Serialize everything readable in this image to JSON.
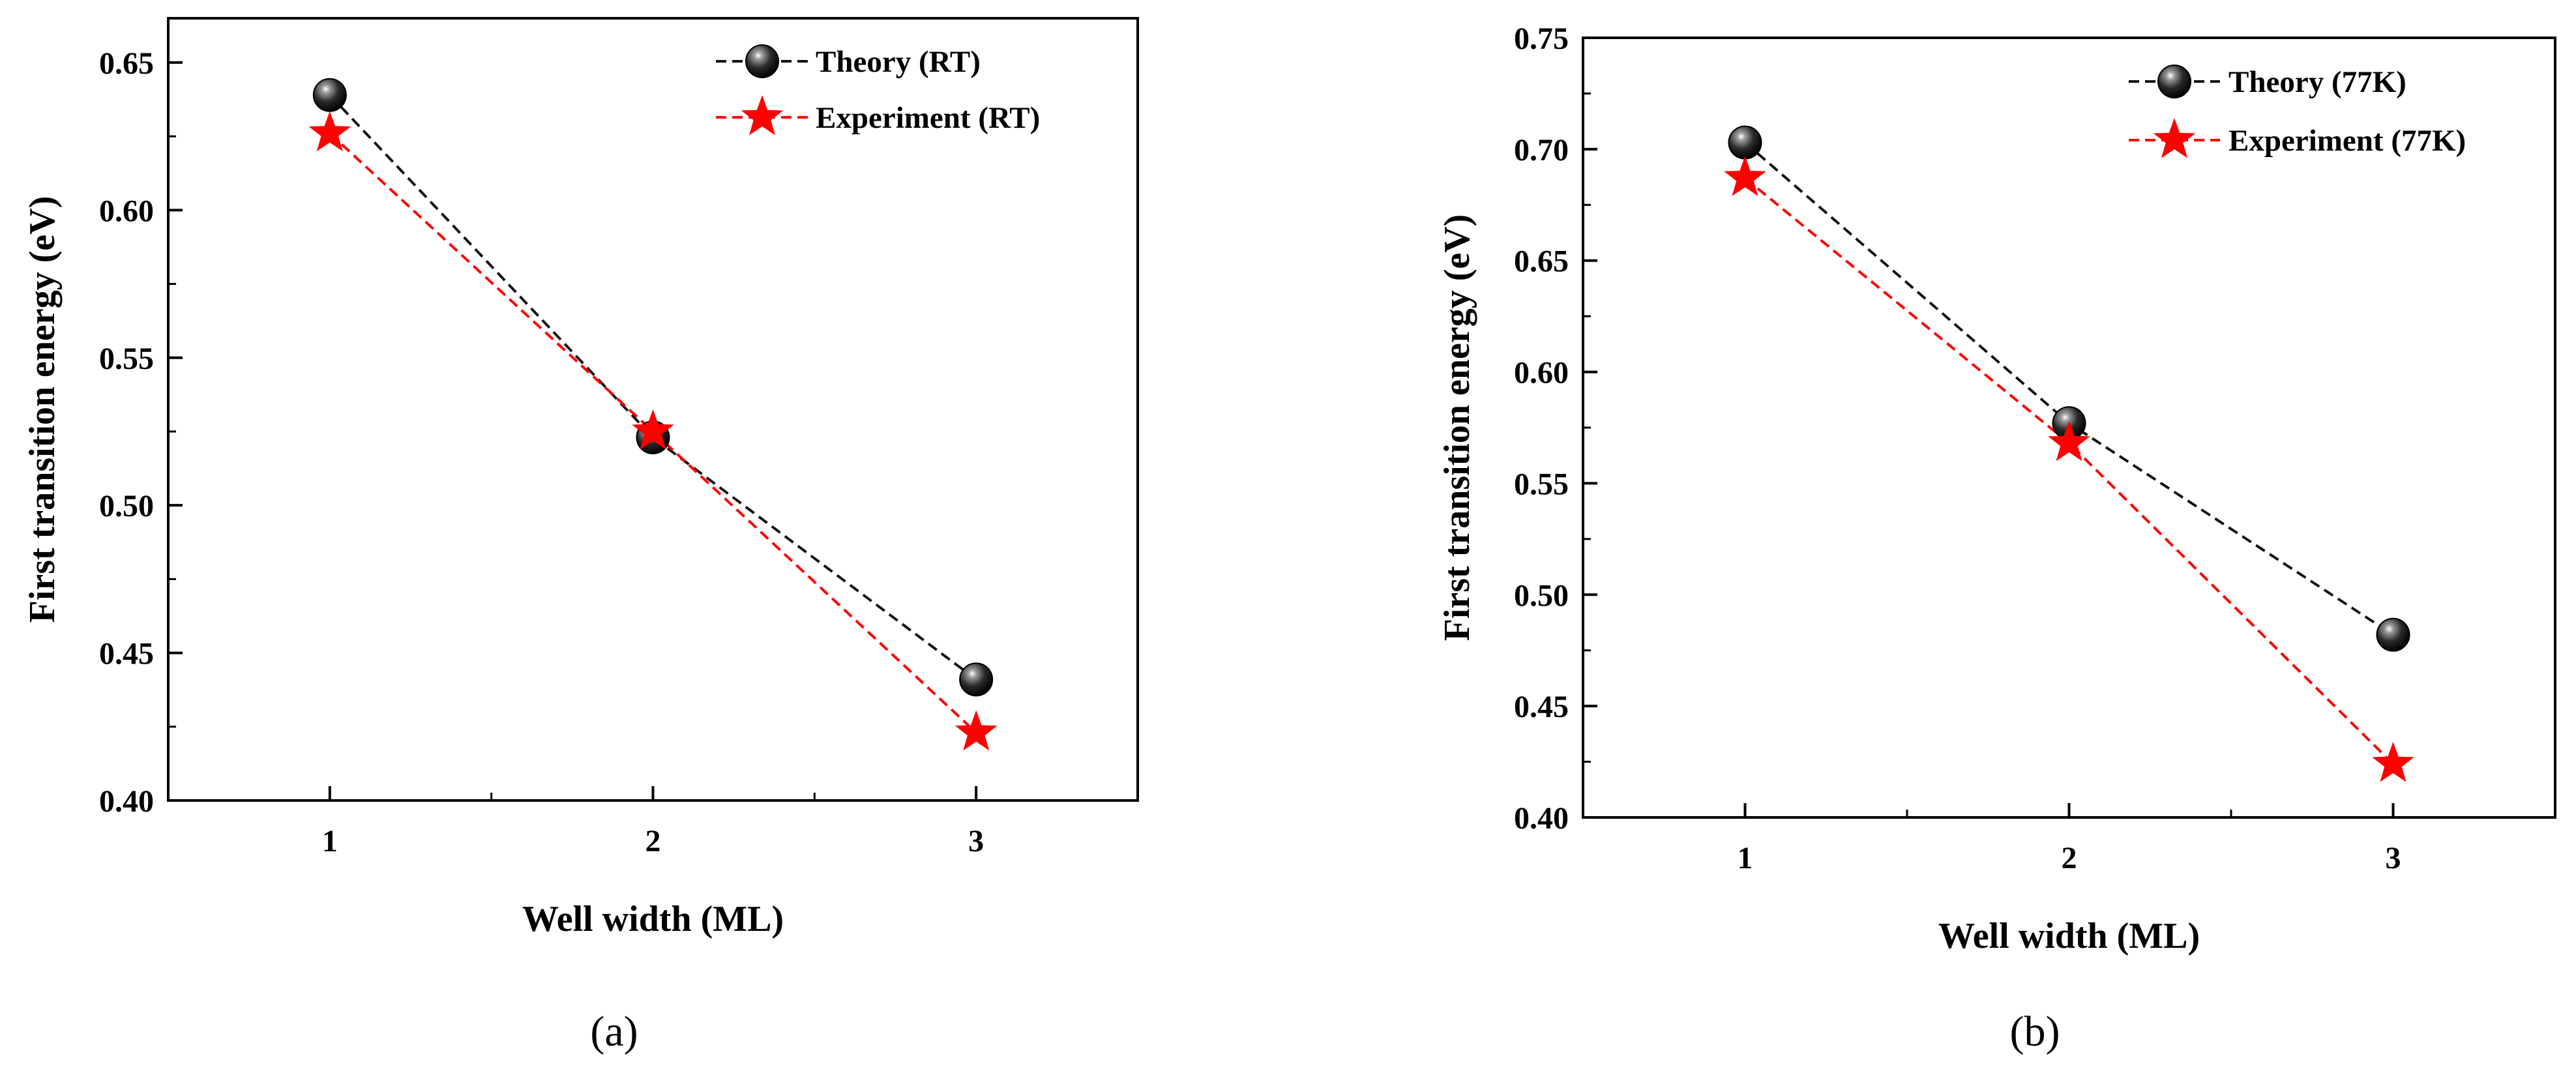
{
  "figure": {
    "panels": [
      "(a)",
      "(b)"
    ]
  },
  "colors": {
    "theory": "#111111",
    "experiment": "#ff0000"
  },
  "chart_data": [
    {
      "type": "line",
      "panel_label": "(a)",
      "xlabel": "Well width (ML)",
      "ylabel": "First transition energy (eV)",
      "xlim": [
        0.5,
        3.5
      ],
      "ylim": [
        0.4,
        0.665
      ],
      "x_ticks": [
        1,
        2,
        3
      ],
      "x_tick_labels": [
        "1",
        "2",
        "3"
      ],
      "y_ticks": [
        0.4,
        0.45,
        0.5,
        0.55,
        0.6,
        0.65
      ],
      "y_tick_labels": [
        "0.40",
        "0.45",
        "0.50",
        "0.55",
        "0.60",
        "0.65"
      ],
      "legend_position": "top-right",
      "x": [
        1,
        2,
        3
      ],
      "series": [
        {
          "name": "Theory (RT)",
          "marker": "sphere",
          "line": "dashed",
          "color": "#111111",
          "values": [
            0.639,
            0.523,
            0.441
          ]
        },
        {
          "name": "Experiment (RT)",
          "marker": "star",
          "line": "dashed",
          "color": "#ff0000",
          "values": [
            0.626,
            0.525,
            0.423
          ]
        }
      ]
    },
    {
      "type": "line",
      "panel_label": "(b)",
      "xlabel": "Well width (ML)",
      "ylabel": "First transition energy (eV)",
      "xlim": [
        0.5,
        3.5
      ],
      "ylim": [
        0.4,
        0.75
      ],
      "x_ticks": [
        1,
        2,
        3
      ],
      "x_tick_labels": [
        "1",
        "2",
        "3"
      ],
      "y_ticks": [
        0.4,
        0.45,
        0.5,
        0.55,
        0.6,
        0.65,
        0.7,
        0.75
      ],
      "y_tick_labels": [
        "0.40",
        "0.45",
        "0.50",
        "0.55",
        "0.60",
        "0.65",
        "0.70",
        "0.75"
      ],
      "legend_position": "top-right",
      "x": [
        1,
        2,
        3
      ],
      "series": [
        {
          "name": "Theory (77K)",
          "marker": "sphere",
          "line": "dashed",
          "color": "#111111",
          "values": [
            0.703,
            0.577,
            0.482
          ]
        },
        {
          "name": "Experiment (77K)",
          "marker": "star",
          "line": "dashed",
          "color": "#ff0000",
          "values": [
            0.687,
            0.568,
            0.424
          ]
        }
      ]
    }
  ]
}
